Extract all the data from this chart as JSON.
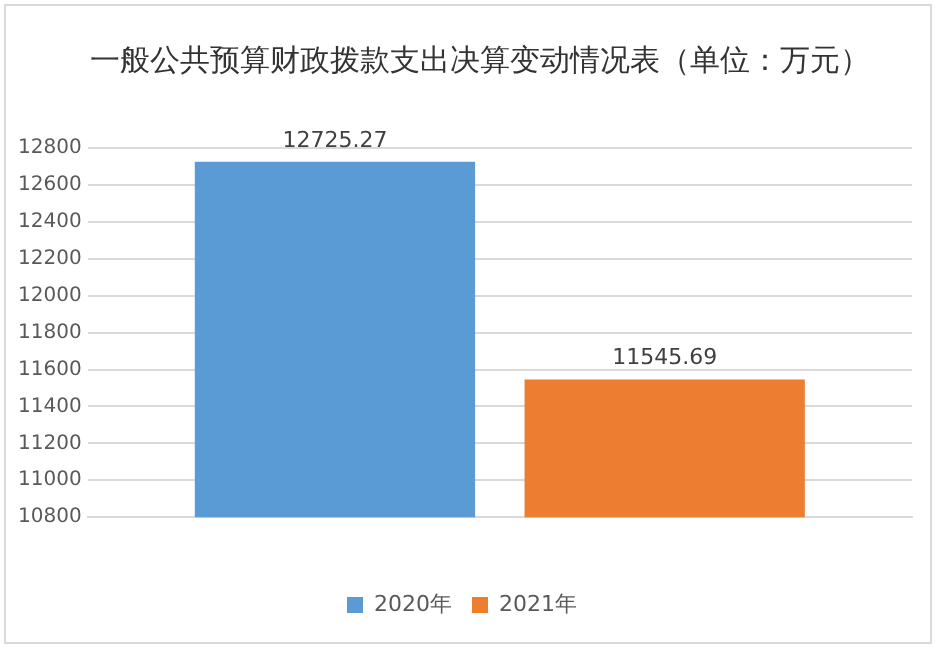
{
  "chart_data": {
    "type": "bar",
    "title": "一般公共预算财政拨款支出决算变动情况表（单位：万元）",
    "categories": [
      null
    ],
    "series": [
      {
        "name": "2020年",
        "color": "#5b9bd5",
        "values": [
          12725.27
        ]
      },
      {
        "name": "2021年",
        "color": "#ed7d31",
        "values": [
          11545.69
        ]
      }
    ],
    "ylim": [
      10800,
      12800
    ],
    "yticks": [
      10800,
      11000,
      11200,
      11400,
      11600,
      11800,
      12000,
      12200,
      12400,
      12600,
      12800
    ],
    "grid": "y",
    "legend": "bottom",
    "data_labels": true
  }
}
